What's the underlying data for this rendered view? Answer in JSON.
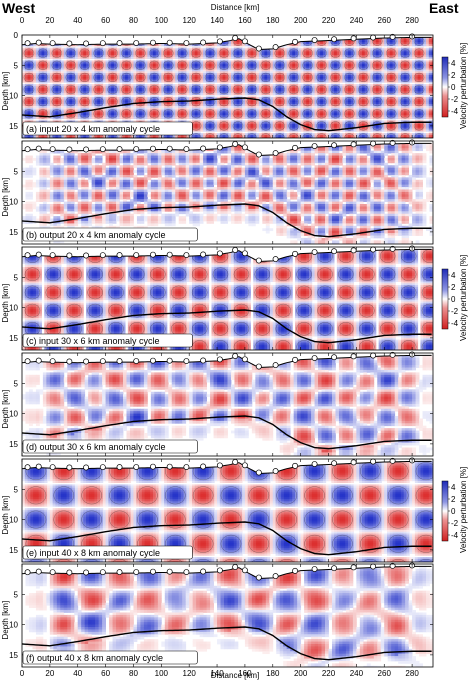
{
  "figure": {
    "west_label": "West",
    "east_label": "East",
    "top_axis_title": "Distance [km]",
    "bottom_axis_title": "Distance [km]",
    "depth_label": "Depth [km]",
    "colorbar_label": "Velocity perturbation [%]",
    "colors": {
      "positive": "#2b35c8",
      "negative": "#dc2a2a",
      "topography_line": "#000000",
      "station_fill": "#ffffff"
    }
  },
  "chart_data": [
    {
      "type": "heatmap",
      "label": "(a) input 20 x 4 km anomaly cycle",
      "kind": "input",
      "anomaly_cycle_km": [
        20,
        4
      ],
      "xlim": [
        0,
        295
      ],
      "ylim": [
        17,
        0
      ],
      "x_ticks": [
        0,
        20,
        40,
        60,
        80,
        100,
        120,
        140,
        160,
        180,
        200,
        220,
        240,
        260,
        280
      ],
      "y_ticks": [
        5,
        10,
        15
      ],
      "colorbar": {
        "ticks": [
          4,
          2,
          0,
          -2,
          -4
        ],
        "range": [
          -5,
          5
        ]
      }
    },
    {
      "type": "heatmap",
      "label": "(b) output 20 x 4 km anomaly cycle",
      "kind": "output",
      "anomaly_cycle_km": [
        20,
        4
      ],
      "xlim": [
        0,
        295
      ],
      "ylim": [
        17,
        0
      ],
      "x_ticks": [
        0,
        20,
        40,
        60,
        80,
        100,
        120,
        140,
        160,
        180,
        200,
        220,
        240,
        260,
        280
      ],
      "y_ticks": [
        5,
        10,
        15
      ]
    },
    {
      "type": "heatmap",
      "label": "(c) input 30 x 6 km anomaly cycle",
      "kind": "input",
      "anomaly_cycle_km": [
        30,
        6
      ],
      "xlim": [
        0,
        295
      ],
      "ylim": [
        17,
        0
      ],
      "x_ticks": [
        0,
        20,
        40,
        60,
        80,
        100,
        120,
        140,
        160,
        180,
        200,
        220,
        240,
        260,
        280
      ],
      "y_ticks": [
        5,
        10,
        15
      ],
      "colorbar": {
        "ticks": [
          4,
          2,
          0,
          -2,
          -4
        ],
        "range": [
          -5,
          5
        ]
      }
    },
    {
      "type": "heatmap",
      "label": "(d) output 30 x 6 km anomaly cycle",
      "kind": "output",
      "anomaly_cycle_km": [
        30,
        6
      ],
      "xlim": [
        0,
        295
      ],
      "ylim": [
        17,
        0
      ],
      "x_ticks": [
        0,
        20,
        40,
        60,
        80,
        100,
        120,
        140,
        160,
        180,
        200,
        220,
        240,
        260,
        280
      ],
      "y_ticks": [
        5,
        10,
        15
      ]
    },
    {
      "type": "heatmap",
      "label": "(e) input 40 x 8 km anomaly cycle",
      "kind": "input",
      "anomaly_cycle_km": [
        40,
        8
      ],
      "xlim": [
        0,
        295
      ],
      "ylim": [
        17,
        0
      ],
      "x_ticks": [
        0,
        20,
        40,
        60,
        80,
        100,
        120,
        140,
        160,
        180,
        200,
        220,
        240,
        260,
        280
      ],
      "y_ticks": [
        5,
        10,
        15
      ],
      "colorbar": {
        "ticks": [
          4,
          2,
          0,
          -2,
          -4
        ],
        "range": [
          -5,
          5
        ]
      }
    },
    {
      "type": "heatmap",
      "label": "(f) output 40 x 8 km anomaly cycle",
      "kind": "output",
      "anomaly_cycle_km": [
        40,
        8
      ],
      "xlim": [
        0,
        295
      ],
      "ylim": [
        17,
        0
      ],
      "x_ticks": [
        0,
        20,
        40,
        60,
        80,
        100,
        120,
        140,
        160,
        180,
        200,
        220,
        240,
        260,
        280
      ],
      "y_ticks": [
        5,
        10,
        15
      ]
    }
  ],
  "surface": {
    "x": [
      0,
      10,
      20,
      40,
      60,
      80,
      100,
      120,
      140,
      150,
      155,
      160,
      170,
      180,
      190,
      200,
      220,
      240,
      260,
      280,
      295
    ],
    "depth": [
      1.6,
      1.4,
      1.5,
      1.6,
      1.5,
      1.5,
      1.4,
      1.5,
      1.3,
      0.9,
      0.5,
      1.2,
      2.4,
      2.3,
      1.6,
      1.1,
      0.9,
      0.7,
      0.5,
      0.4,
      0.4
    ]
  },
  "interface": {
    "x": [
      0,
      20,
      40,
      60,
      80,
      100,
      120,
      140,
      160,
      170,
      180,
      190,
      200,
      210,
      220,
      240,
      260,
      280,
      295
    ],
    "depth": [
      13.2,
      13.5,
      12.8,
      12.0,
      11.3,
      11.0,
      10.9,
      10.6,
      10.4,
      10.7,
      11.8,
      13.5,
      14.8,
      15.6,
      15.8,
      15.3,
      14.6,
      14.4,
      14.4
    ]
  },
  "stations_x": [
    4,
    12,
    22,
    34,
    46,
    58,
    70,
    82,
    94,
    106,
    118,
    130,
    142,
    153,
    160,
    170,
    182,
    196,
    210,
    224,
    238,
    252,
    266,
    280
  ]
}
